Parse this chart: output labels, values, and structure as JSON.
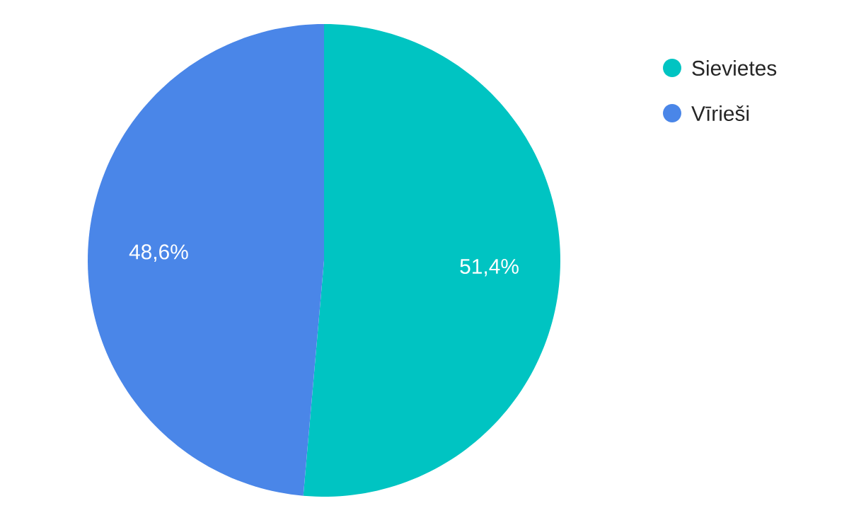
{
  "chart_data": {
    "type": "pie",
    "categories": [
      "Sievietes",
      "Vīrieši"
    ],
    "values": [
      51.4,
      48.6
    ],
    "value_labels": [
      "51,4%",
      "48,6%"
    ],
    "colors": [
      "#00c4c2",
      "#4a86e8"
    ],
    "legend": "top right"
  }
}
